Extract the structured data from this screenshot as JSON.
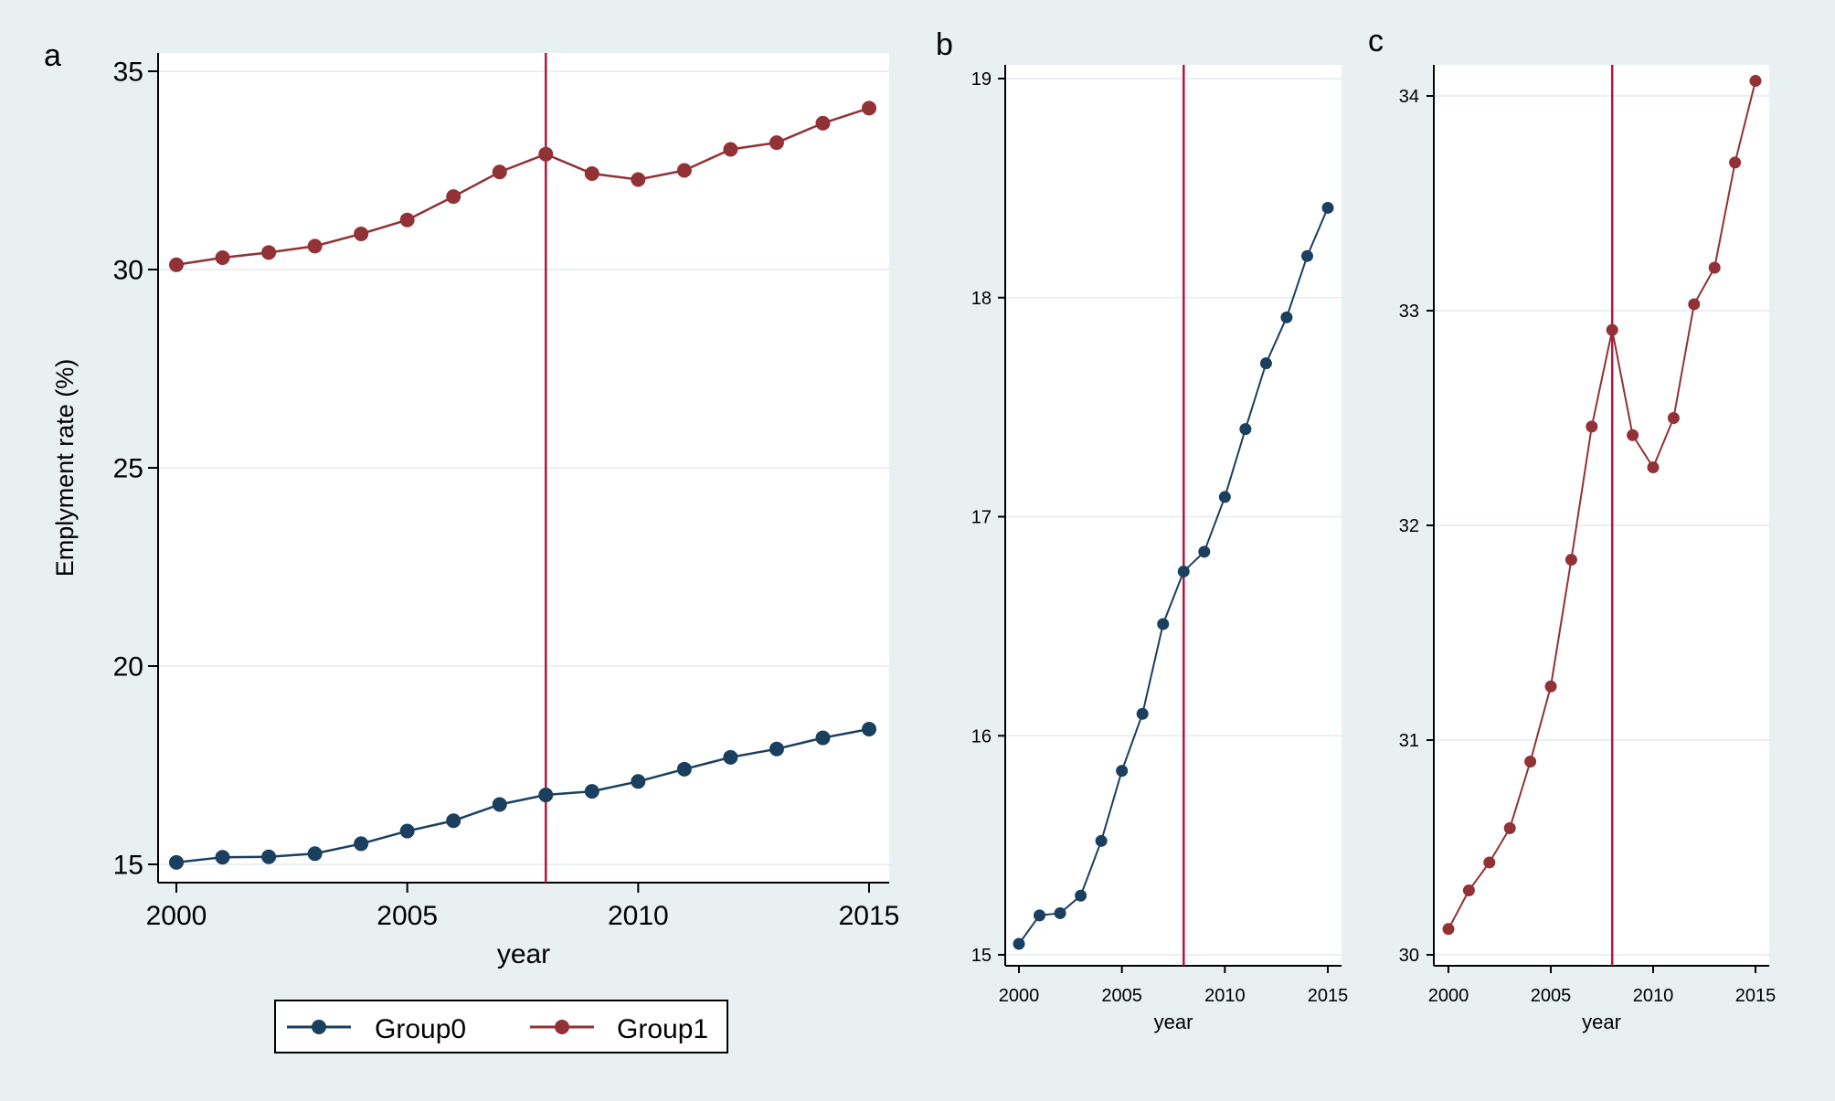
{
  "colors": {
    "group0": "#1a3f5f",
    "group1": "#923136",
    "reference_line": "#b5163b"
  },
  "legend": {
    "items": [
      {
        "label": "Group0",
        "color": "#1a3f5f"
      },
      {
        "label": "Group1",
        "color": "#923136"
      }
    ]
  },
  "chart_data": [
    {
      "id": "a",
      "panel_label": "a",
      "type": "line",
      "xlabel": "year",
      "ylabel": "Emplyment rate (%)",
      "xlim": [
        2000,
        2015
      ],
      "ylim": [
        15,
        35
      ],
      "xticks": [
        2000,
        2005,
        2010,
        2015
      ],
      "yticks": [
        15,
        20,
        25,
        30,
        35
      ],
      "reference_x": 2008,
      "x": [
        2000,
        2001,
        2002,
        2003,
        2004,
        2005,
        2006,
        2007,
        2008,
        2009,
        2010,
        2011,
        2012,
        2013,
        2014,
        2015
      ],
      "series": [
        {
          "name": "Group0",
          "color": "#1a3f5f",
          "values": [
            15.05,
            15.18,
            15.19,
            15.27,
            15.52,
            15.84,
            16.1,
            16.51,
            16.75,
            16.84,
            17.09,
            17.4,
            17.7,
            17.91,
            18.19,
            18.41
          ]
        },
        {
          "name": "Group1",
          "color": "#923136",
          "values": [
            30.12,
            30.3,
            30.43,
            30.59,
            30.9,
            31.25,
            31.84,
            32.46,
            32.91,
            32.42,
            32.27,
            32.5,
            33.03,
            33.2,
            33.69,
            34.07
          ]
        }
      ]
    },
    {
      "id": "b",
      "panel_label": "b",
      "type": "line",
      "xlabel": "year",
      "ylabel": "",
      "xlim": [
        2000,
        2015
      ],
      "ylim": [
        15,
        19
      ],
      "xticks": [
        2000,
        2005,
        2010,
        2015
      ],
      "yticks": [
        15,
        16,
        17,
        18,
        19
      ],
      "reference_x": 2008,
      "x": [
        2000,
        2001,
        2002,
        2003,
        2004,
        2005,
        2006,
        2007,
        2008,
        2009,
        2010,
        2011,
        2012,
        2013,
        2014,
        2015
      ],
      "series": [
        {
          "name": "Group0",
          "color": "#1a3f5f",
          "values": [
            15.05,
            15.18,
            15.19,
            15.27,
            15.52,
            15.84,
            16.1,
            16.51,
            16.75,
            16.84,
            17.09,
            17.4,
            17.7,
            17.91,
            18.19,
            18.41
          ]
        }
      ]
    },
    {
      "id": "c",
      "panel_label": "c",
      "type": "line",
      "xlabel": "year",
      "ylabel": "",
      "xlim": [
        2000,
        2015
      ],
      "ylim": [
        30,
        34
      ],
      "xticks": [
        2000,
        2005,
        2010,
        2015
      ],
      "yticks": [
        30,
        31,
        32,
        33,
        34
      ],
      "reference_x": 2008,
      "x": [
        2000,
        2001,
        2002,
        2003,
        2004,
        2005,
        2006,
        2007,
        2008,
        2009,
        2010,
        2011,
        2012,
        2013,
        2014,
        2015
      ],
      "series": [
        {
          "name": "Group1",
          "color": "#923136",
          "values": [
            30.12,
            30.3,
            30.43,
            30.59,
            30.9,
            31.25,
            31.84,
            32.46,
            32.91,
            32.42,
            32.27,
            32.5,
            33.03,
            33.2,
            33.69,
            34.07
          ]
        }
      ]
    }
  ]
}
